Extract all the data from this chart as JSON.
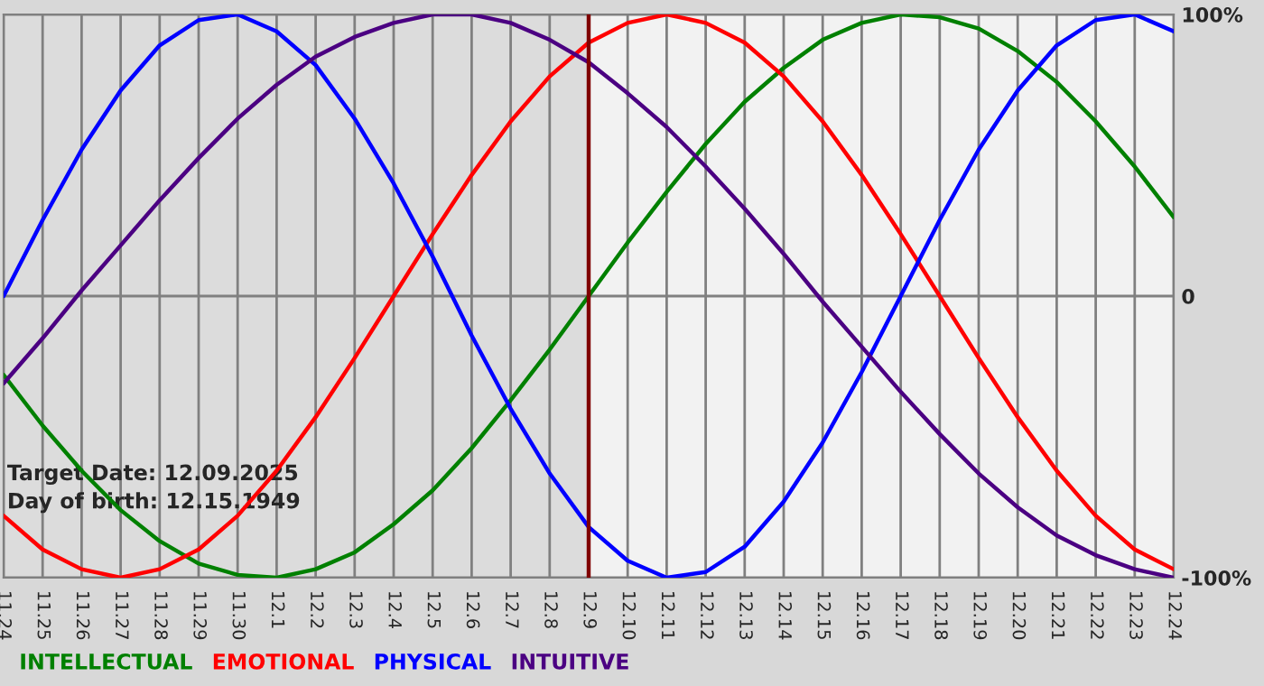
{
  "chart_data": {
    "type": "line",
    "categories": [
      "11.24",
      "11.25",
      "11.26",
      "11.27",
      "11.28",
      "11.29",
      "11.30",
      "12.1",
      "12.2",
      "12.3",
      "12.4",
      "12.5",
      "12.6",
      "12.7",
      "12.8",
      "12.9",
      "12.10",
      "12.11",
      "12.12",
      "12.13",
      "12.14",
      "12.15",
      "12.16",
      "12.17",
      "12.18",
      "12.19",
      "12.20",
      "12.21",
      "12.22",
      "12.23",
      "12.24"
    ],
    "series": [
      {
        "name": "INTELLECTUAL",
        "color": "#008000",
        "values": [
          -28,
          -46,
          -62,
          -76,
          -87,
          -95,
          -99,
          -100,
          -97,
          -91,
          -81,
          -69,
          -54,
          -37,
          -19,
          0,
          19,
          37,
          54,
          69,
          81,
          91,
          97,
          100,
          99,
          95,
          87,
          76,
          62,
          46,
          28
        ]
      },
      {
        "name": "EMOTIONAL",
        "color": "#ff0000",
        "values": [
          -78,
          -90,
          -97,
          -100,
          -97,
          -90,
          -78,
          -62,
          -43,
          -22,
          0,
          22,
          43,
          62,
          78,
          90,
          97,
          100,
          97,
          90,
          78,
          62,
          43,
          22,
          0,
          -22,
          -43,
          -62,
          -78,
          -90,
          -97
        ]
      },
      {
        "name": "PHYSICAL",
        "color": "#0000ff",
        "values": [
          0,
          27,
          52,
          73,
          89,
          98,
          100,
          94,
          82,
          63,
          40,
          14,
          -14,
          -40,
          -63,
          -82,
          -94,
          -100,
          -98,
          -89,
          -73,
          -52,
          -27,
          0,
          27,
          52,
          73,
          89,
          98,
          100,
          94
        ]
      },
      {
        "name": "INTUITIVE",
        "color": "#4b0082",
        "values": [
          -31,
          -15,
          2,
          18,
          34,
          49,
          63,
          75,
          85,
          92,
          97,
          100,
          100,
          97,
          91,
          83,
          72,
          60,
          46,
          31,
          15,
          -2,
          -18,
          -34,
          -49,
          -63,
          -75,
          -85,
          -92,
          -97,
          -100
        ]
      }
    ],
    "ylim": [
      -100,
      100
    ],
    "yticks": [
      {
        "value": 100,
        "label": "100%"
      },
      0,
      {
        "value": -100,
        "label": "-100%"
      }
    ],
    "grid": true,
    "legend": "bottom",
    "bands": [
      {
        "axis": "x",
        "from": "11.24",
        "to": "12.9",
        "color": "#dcdcdc"
      }
    ],
    "ref_lines": [
      {
        "axis": "x",
        "value": "12.9",
        "color": "#800000"
      }
    ],
    "annotations": [
      "Target Date: 12.09.2025",
      "Day of birth: 12.15.1949"
    ]
  }
}
